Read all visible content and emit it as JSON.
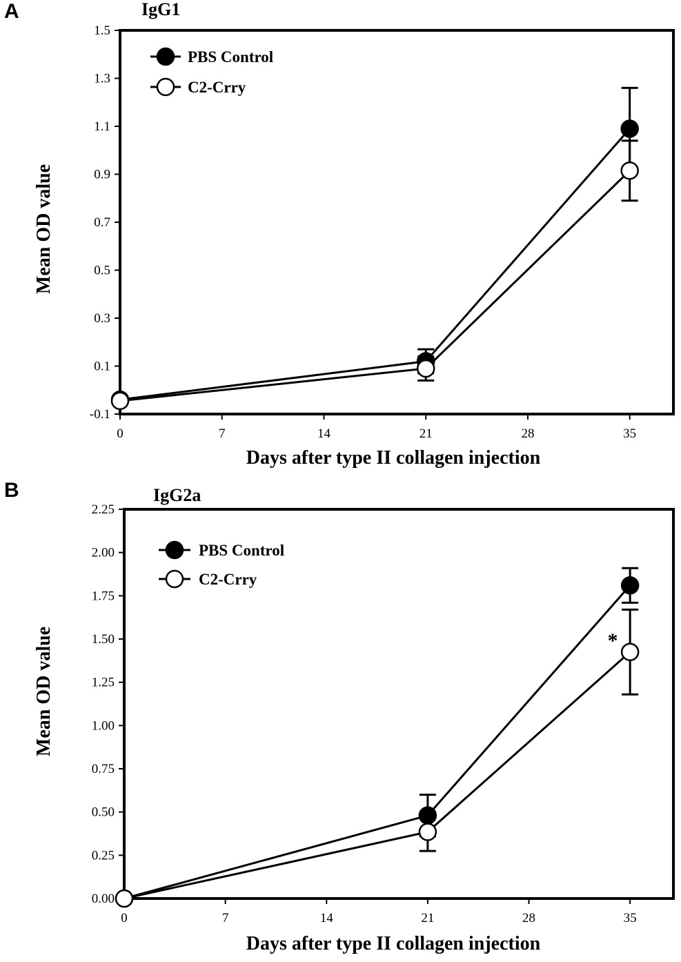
{
  "chart_data": [
    {
      "panel": "A",
      "type": "line",
      "title": "IgG1",
      "xlabel": "Days after type II collagen injection",
      "ylabel": "Mean OD value",
      "xlim": [
        0,
        38
      ],
      "ylim": [
        -0.1,
        1.5
      ],
      "xticks": [
        0,
        7,
        14,
        21,
        28,
        35
      ],
      "yticks": [
        -0.1,
        0.1,
        0.3,
        0.5,
        0.7,
        0.9,
        1.1,
        1.3,
        1.5
      ],
      "ytick_labels": [
        "-0.1",
        "0.1",
        "0.3",
        "0.5",
        "0.7",
        "0.9",
        "1.1",
        "1.3",
        "1.5"
      ],
      "legend_position": "top-left",
      "series": [
        {
          "name": "PBS Control",
          "marker": "filled",
          "x": [
            0,
            21,
            35
          ],
          "values": [
            -0.04,
            0.12,
            1.09
          ],
          "err": [
            0,
            0.05,
            0.17
          ]
        },
        {
          "name": "C2-Crry",
          "marker": "open",
          "x": [
            0,
            21,
            35
          ],
          "values": [
            -0.045,
            0.09,
            0.915
          ],
          "err": [
            0,
            0.05,
            0.125
          ]
        }
      ],
      "annotations": []
    },
    {
      "panel": "B",
      "type": "line",
      "title": "IgG2a",
      "xlabel": "Days after type II collagen injection",
      "ylabel": "Mean OD value",
      "xlim": [
        0,
        38
      ],
      "ylim": [
        0,
        2.25
      ],
      "xticks": [
        0,
        7,
        14,
        21,
        28,
        35
      ],
      "yticks": [
        0,
        0.25,
        0.5,
        0.75,
        1.0,
        1.25,
        1.5,
        1.75,
        2.0,
        2.25
      ],
      "ytick_labels": [
        "0.00",
        "0.25",
        "0.50",
        "0.75",
        "1.00",
        "1.25",
        "1.50",
        "1.75",
        "2.00",
        "2.25"
      ],
      "legend_position": "top-left",
      "series": [
        {
          "name": "PBS Control",
          "marker": "filled",
          "x": [
            0,
            21,
            35
          ],
          "values": [
            0.0,
            0.48,
            1.81
          ],
          "err": [
            0,
            0.12,
            0.1
          ]
        },
        {
          "name": "C2-Crry",
          "marker": "open",
          "x": [
            0,
            21,
            35
          ],
          "values": [
            0.0,
            0.385,
            1.425
          ],
          "err": [
            0,
            0.11,
            0.245
          ]
        }
      ],
      "annotations": [
        {
          "text": "*",
          "x": 33.8,
          "y": 1.5
        }
      ]
    }
  ]
}
